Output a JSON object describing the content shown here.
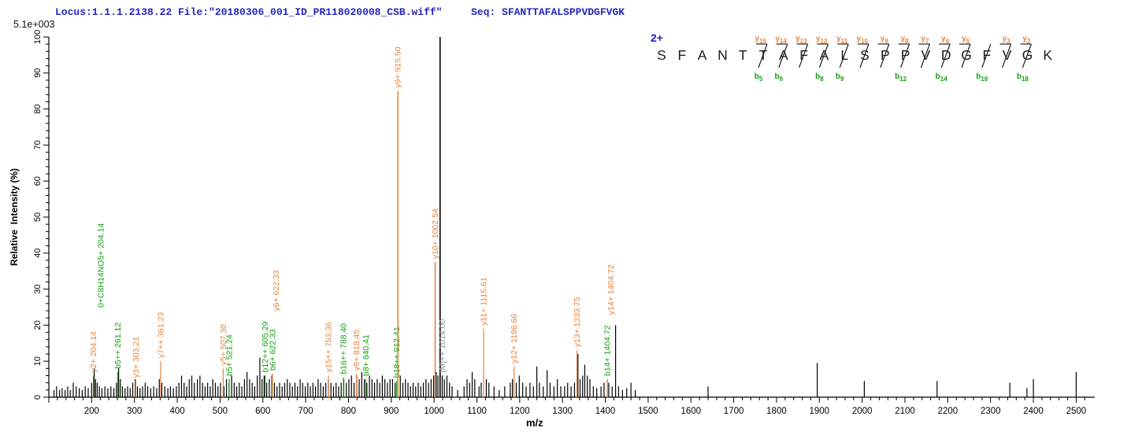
{
  "header": {
    "locus_file": "Locus:1.1.1.2138.22 File:\"20180306_001_ID_PR118020008_CSB.wiff\"",
    "seq_label": "Seq:",
    "seq_value": "SFANTTAFALSPPVDGFVGK",
    "max_intensity": "5.1e+003"
  },
  "axes": {
    "y_label": "Relative  Intensity (%)",
    "x_label": "m/z",
    "y_min": 0,
    "y_max": 100,
    "y_major_step": 10,
    "y_minor_step": 2,
    "x_min": 100,
    "x_max": 2525,
    "x_label_start": 200,
    "x_label_end": 2500,
    "x_major_step": 100,
    "x_minor_step": 20
  },
  "peptide": {
    "charge": "2+",
    "residues": [
      "S",
      "F",
      "A",
      "N",
      "T",
      "T",
      "A",
      "F",
      "A",
      "L",
      "S",
      "P",
      "P",
      "V",
      "D",
      "G",
      "F",
      "V",
      "G",
      "K"
    ],
    "y_ions": [
      {
        "n": 15,
        "after": 5
      },
      {
        "n": 14,
        "after": 6
      },
      {
        "n": 13,
        "after": 7
      },
      {
        "n": 12,
        "after": 8
      },
      {
        "n": 11,
        "after": 9
      },
      {
        "n": 10,
        "after": 10
      },
      {
        "n": 9,
        "after": 11
      },
      {
        "n": 8,
        "after": 12
      },
      {
        "n": 7,
        "after": 13
      },
      {
        "n": 6,
        "after": 14
      },
      {
        "n": 5,
        "after": 15
      },
      {
        "n": 3,
        "after": 17
      },
      {
        "n": 2,
        "after": 18
      }
    ],
    "b_ions": [
      {
        "n": 5,
        "after": 5
      },
      {
        "n": 6,
        "after": 6
      },
      {
        "n": 8,
        "after": 8
      },
      {
        "n": 9,
        "after": 9
      },
      {
        "n": 12,
        "after": 12
      },
      {
        "n": 14,
        "after": 14
      },
      {
        "n": 16,
        "after": 16
      },
      {
        "n": 18,
        "after": 18
      }
    ]
  },
  "chart_data": {
    "type": "bar",
    "subtype": "ms2-mass-spectrum",
    "title": "",
    "xlabel": "m/z",
    "ylabel": "Relative Intensity (%)",
    "xlim": [
      100,
      2525
    ],
    "ylim": [
      0,
      100
    ],
    "grid": false,
    "base_peak_intensity": "5.1e+003",
    "annotated_peaks": [
      {
        "label": "y2+ 204.14",
        "mz": 204.14,
        "pct": 6,
        "type": "y"
      },
      {
        "label": "0+C8H14NO5+ 204.14",
        "mz": 204.14,
        "pct": 6,
        "type": "b",
        "dx": 13,
        "label_base": 24
      },
      {
        "label": "b5++ 261.12",
        "mz": 261.12,
        "pct": 7,
        "type": "b"
      },
      {
        "label": "y3+ 303.21",
        "mz": 303.21,
        "pct": 4.5,
        "type": "y"
      },
      {
        "label": "y7++ 361.23",
        "mz": 361.23,
        "pct": 10,
        "type": "y"
      },
      {
        "label": "y5+ 507.30",
        "mz": 507.3,
        "pct": 8,
        "type": "y"
      },
      {
        "label": "b5+ 521.24",
        "mz": 521.24,
        "pct": 5,
        "type": "b"
      },
      {
        "label": "b12++ 605.29",
        "mz": 605.29,
        "pct": 6,
        "type": "b"
      },
      {
        "label": "b6+ 622.33",
        "mz": 622.33,
        "pct": 6.5,
        "type": "b"
      },
      {
        "label": "y6+ 622.33",
        "mz": 622.33,
        "pct": 6.5,
        "type": "y",
        "dx": 8,
        "label_base": 23
      },
      {
        "label": "y15++ 753.36",
        "mz": 753.36,
        "pct": 6,
        "type": "y"
      },
      {
        "label": "b16++ 788.40",
        "mz": 788.4,
        "pct": 5.5,
        "type": "b"
      },
      {
        "label": "y8+ 818.45",
        "mz": 818.45,
        "pct": 6.5,
        "type": "y"
      },
      {
        "label": "b8+ 840.41",
        "mz": 840.41,
        "pct": 5,
        "type": "b"
      },
      {
        "label": "b18++ 912.41",
        "mz": 912.41,
        "pct": 4.5,
        "type": "b"
      },
      {
        "label": "y9+ 915.50",
        "mz": 915.5,
        "pct": 85,
        "type": "y"
      },
      {
        "label": "y10+ 1002.54",
        "mz": 1002.54,
        "pct": 37.5,
        "type": "y"
      },
      {
        "label": "[M]++ 1014.00",
        "mz": 1014.0,
        "pct": 100,
        "type": "precursor",
        "dx": 6,
        "label_base": 6
      },
      {
        "label": "y11+ 1115.61",
        "mz": 1115.61,
        "pct": 19,
        "type": "y"
      },
      {
        "label": "y12+ 1186.66",
        "mz": 1186.66,
        "pct": 8.5,
        "type": "y"
      },
      {
        "label": "y13+ 1333.75",
        "mz": 1333.75,
        "pct": 13,
        "type": "y"
      },
      {
        "label": "b14+ 1404.72",
        "mz": 1404.72,
        "pct": 5,
        "type": "b"
      },
      {
        "label": "y14+ 1404.72",
        "mz": 1404.72,
        "pct": 5,
        "type": "y",
        "dx": 8,
        "label_base": 22
      }
    ],
    "background_peaks": [
      [
        112,
        2
      ],
      [
        118,
        3
      ],
      [
        125,
        2
      ],
      [
        131,
        2.5
      ],
      [
        138,
        2
      ],
      [
        144,
        3
      ],
      [
        150,
        2
      ],
      [
        157,
        4
      ],
      [
        164,
        3
      ],
      [
        171,
        2.5
      ],
      [
        178,
        2
      ],
      [
        185,
        3
      ],
      [
        192,
        2.5
      ],
      [
        200,
        4
      ],
      [
        206,
        8
      ],
      [
        209,
        5
      ],
      [
        213,
        4
      ],
      [
        218,
        3
      ],
      [
        224,
        2.5
      ],
      [
        231,
        3
      ],
      [
        238,
        2.5
      ],
      [
        245,
        3
      ],
      [
        252,
        2.5
      ],
      [
        258,
        4
      ],
      [
        263,
        8
      ],
      [
        267,
        5
      ],
      [
        272,
        3
      ],
      [
        278,
        2.5
      ],
      [
        284,
        3
      ],
      [
        290,
        2.5
      ],
      [
        296,
        4
      ],
      [
        302,
        5
      ],
      [
        307,
        3
      ],
      [
        313,
        2.5
      ],
      [
        319,
        3
      ],
      [
        325,
        4
      ],
      [
        331,
        3
      ],
      [
        338,
        2.5
      ],
      [
        345,
        3
      ],
      [
        352,
        2.5
      ],
      [
        358,
        5
      ],
      [
        364,
        4
      ],
      [
        371,
        3
      ],
      [
        378,
        2.5
      ],
      [
        384,
        3
      ],
      [
        391,
        2.5
      ],
      [
        398,
        3
      ],
      [
        404,
        4
      ],
      [
        410,
        6
      ],
      [
        416,
        4
      ],
      [
        422,
        3
      ],
      [
        428,
        5
      ],
      [
        434,
        6
      ],
      [
        440,
        4
      ],
      [
        447,
        5
      ],
      [
        453,
        6
      ],
      [
        459,
        4
      ],
      [
        465,
        3
      ],
      [
        471,
        4
      ],
      [
        477,
        3
      ],
      [
        483,
        5
      ],
      [
        489,
        4
      ],
      [
        495,
        3
      ],
      [
        501,
        4
      ],
      [
        509,
        3
      ],
      [
        515,
        5
      ],
      [
        521,
        4
      ],
      [
        527,
        6
      ],
      [
        533,
        4
      ],
      [
        539,
        3
      ],
      [
        545,
        4
      ],
      [
        551,
        3
      ],
      [
        557,
        5
      ],
      [
        563,
        7
      ],
      [
        569,
        5
      ],
      [
        575,
        4
      ],
      [
        581,
        3
      ],
      [
        587,
        6
      ],
      [
        593,
        11
      ],
      [
        598,
        5
      ],
      [
        603,
        6
      ],
      [
        609,
        4
      ],
      [
        615,
        5
      ],
      [
        621,
        6
      ],
      [
        627,
        4
      ],
      [
        633,
        3
      ],
      [
        639,
        4
      ],
      [
        645,
        3
      ],
      [
        651,
        4
      ],
      [
        657,
        5
      ],
      [
        663,
        4
      ],
      [
        669,
        3
      ],
      [
        675,
        4
      ],
      [
        681,
        3
      ],
      [
        687,
        5
      ],
      [
        693,
        4
      ],
      [
        699,
        3
      ],
      [
        705,
        4
      ],
      [
        711,
        3
      ],
      [
        717,
        4
      ],
      [
        723,
        3
      ],
      [
        729,
        5
      ],
      [
        735,
        4
      ],
      [
        741,
        3
      ],
      [
        747,
        4
      ],
      [
        753,
        5
      ],
      [
        759,
        4
      ],
      [
        765,
        3
      ],
      [
        771,
        4
      ],
      [
        777,
        3
      ],
      [
        783,
        4
      ],
      [
        789,
        5
      ],
      [
        795,
        4
      ],
      [
        801,
        5
      ],
      [
        807,
        6
      ],
      [
        813,
        4
      ],
      [
        819,
        6
      ],
      [
        825,
        5
      ],
      [
        831,
        7
      ],
      [
        837,
        5
      ],
      [
        843,
        4
      ],
      [
        849,
        6
      ],
      [
        855,
        5
      ],
      [
        861,
        4
      ],
      [
        867,
        5
      ],
      [
        873,
        4
      ],
      [
        879,
        6
      ],
      [
        885,
        5
      ],
      [
        891,
        4
      ],
      [
        897,
        5
      ],
      [
        903,
        5
      ],
      [
        909,
        4
      ],
      [
        921,
        6
      ],
      [
        927,
        4
      ],
      [
        933,
        5
      ],
      [
        939,
        4
      ],
      [
        945,
        3
      ],
      [
        951,
        4
      ],
      [
        957,
        3
      ],
      [
        963,
        4
      ],
      [
        969,
        3
      ],
      [
        975,
        4
      ],
      [
        981,
        5
      ],
      [
        987,
        4
      ],
      [
        993,
        5
      ],
      [
        999,
        6
      ],
      [
        1005,
        7
      ],
      [
        1009,
        6
      ],
      [
        1019,
        6
      ],
      [
        1024,
        5
      ],
      [
        1030,
        6
      ],
      [
        1036,
        4
      ],
      [
        1042,
        3
      ],
      [
        1055,
        2
      ],
      [
        1070,
        3
      ],
      [
        1077,
        5
      ],
      [
        1083,
        4
      ],
      [
        1089,
        7
      ],
      [
        1095,
        5
      ],
      [
        1105,
        3
      ],
      [
        1110,
        4
      ],
      [
        1122,
        5
      ],
      [
        1128,
        4
      ],
      [
        1140,
        3
      ],
      [
        1152,
        2
      ],
      [
        1165,
        3
      ],
      [
        1178,
        4
      ],
      [
        1183,
        5
      ],
      [
        1192,
        4
      ],
      [
        1199,
        6
      ],
      [
        1207,
        4
      ],
      [
        1215,
        3
      ],
      [
        1224,
        4
      ],
      [
        1232,
        3
      ],
      [
        1240,
        8.5
      ],
      [
        1246,
        4
      ],
      [
        1255,
        3
      ],
      [
        1264,
        7.5
      ],
      [
        1271,
        4
      ],
      [
        1280,
        3
      ],
      [
        1288,
        5
      ],
      [
        1296,
        3
      ],
      [
        1305,
        3
      ],
      [
        1312,
        4
      ],
      [
        1320,
        3
      ],
      [
        1328,
        4
      ],
      [
        1336,
        12
      ],
      [
        1341,
        5
      ],
      [
        1347,
        6
      ],
      [
        1352,
        9
      ],
      [
        1358,
        6
      ],
      [
        1364,
        5
      ],
      [
        1372,
        3
      ],
      [
        1380,
        2.5
      ],
      [
        1390,
        3
      ],
      [
        1397,
        4
      ],
      [
        1408,
        4
      ],
      [
        1416,
        3
      ],
      [
        1424,
        20
      ],
      [
        1431,
        3
      ],
      [
        1440,
        2
      ],
      [
        1450,
        2.5
      ],
      [
        1460,
        4
      ],
      [
        1470,
        2
      ],
      [
        1640,
        3
      ],
      [
        1895,
        9.5
      ],
      [
        2005,
        4.5
      ],
      [
        2175,
        4.5
      ],
      [
        2345,
        4
      ],
      [
        2385,
        2.5
      ],
      [
        2400,
        5
      ],
      [
        2500,
        7
      ]
    ]
  },
  "colors": {
    "y_ion": "#e8843c",
    "b_ion": "#14a014",
    "precursor_label": "#8f8f8f",
    "peak": "#000000",
    "header_blue": "#2525be",
    "charge_blue": "#1f1fd0",
    "axis": "#000000"
  }
}
